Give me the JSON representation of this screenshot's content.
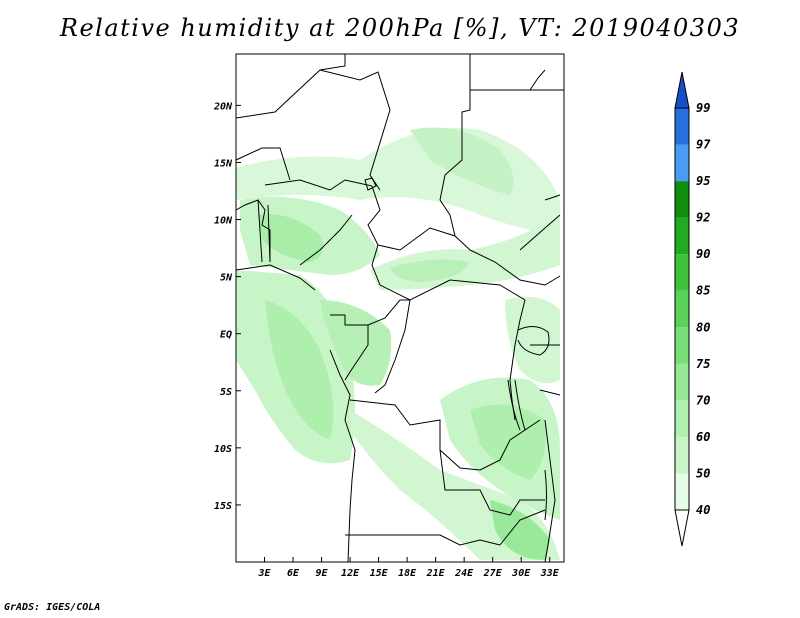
{
  "title": "Relative humidity at 200hPa [%], VT: 2019040303",
  "credit": "GrADS: IGES/COLA",
  "map": {
    "lon_range": [
      0,
      34.5
    ],
    "lat_range": [
      -20,
      24.5
    ],
    "x_ticks": [
      {
        "lon": 3,
        "label": "3E"
      },
      {
        "lon": 6,
        "label": "6E"
      },
      {
        "lon": 9,
        "label": "9E"
      },
      {
        "lon": 12,
        "label": "12E"
      },
      {
        "lon": 15,
        "label": "15E"
      },
      {
        "lon": 18,
        "label": "18E"
      },
      {
        "lon": 21,
        "label": "21E"
      },
      {
        "lon": 24,
        "label": "24E"
      },
      {
        "lon": 27,
        "label": "27E"
      },
      {
        "lon": 30,
        "label": "30E"
      },
      {
        "lon": 33,
        "label": "33E"
      }
    ],
    "y_ticks": [
      {
        "lat": 20,
        "label": "20N"
      },
      {
        "lat": 15,
        "label": "15N"
      },
      {
        "lat": 10,
        "label": "10N"
      },
      {
        "lat": 5,
        "label": "5N"
      },
      {
        "lat": 0,
        "label": "EQ"
      },
      {
        "lat": -5,
        "label": "5S"
      },
      {
        "lat": -10,
        "label": "10S"
      },
      {
        "lat": -15,
        "label": "15S"
      }
    ]
  },
  "colorbar": {
    "levels": [
      "40",
      "50",
      "60",
      "70",
      "75",
      "80",
      "85",
      "90",
      "92",
      "95",
      "97",
      "99"
    ],
    "colors": [
      "#ffffff",
      "#e6fce6",
      "#c8f5c8",
      "#aef0ae",
      "#96e896",
      "#78de78",
      "#5ad25a",
      "#3cc23c",
      "#22aa22",
      "#108e10",
      "#4a9cf2",
      "#2870e0",
      "#1450c8"
    ]
  }
}
